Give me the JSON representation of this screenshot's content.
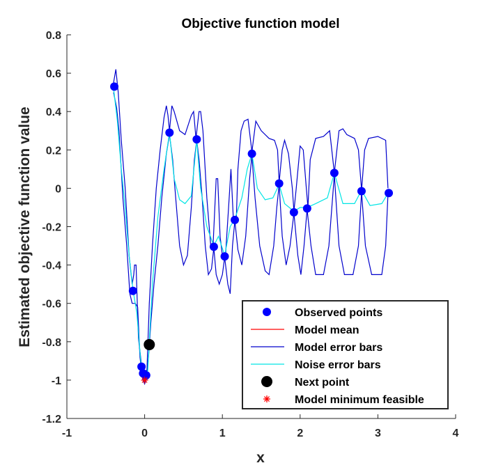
{
  "chart_data": {
    "type": "line",
    "title": "Objective function model",
    "xlabel": "x",
    "ylabel": "Estimated objective function value",
    "xlim": [
      -1,
      4
    ],
    "ylim": [
      -1.2,
      0.8
    ],
    "xticks": [
      "-1",
      "0",
      "1",
      "2",
      "3",
      "4"
    ],
    "yticks": [
      "-1.2",
      "-1",
      "-0.8",
      "-0.6",
      "-0.4",
      "-0.2",
      "0",
      "0.2",
      "0.4",
      "0.6",
      "0.8"
    ],
    "grid": false,
    "legend_position": "bottom-right",
    "series": [
      {
        "name": "Observed points",
        "kind": "markers",
        "color": "#0000ff",
        "points": [
          [
            -0.39,
            0.53
          ],
          [
            -0.15,
            -0.535
          ],
          [
            -0.04,
            -0.93
          ],
          [
            -0.02,
            -0.965
          ],
          [
            0.02,
            -0.975
          ],
          [
            0.32,
            0.29
          ],
          [
            0.67,
            0.255
          ],
          [
            0.89,
            -0.305
          ],
          [
            1.03,
            -0.355
          ],
          [
            1.16,
            -0.165
          ],
          [
            1.38,
            0.18
          ],
          [
            1.73,
            0.025
          ],
          [
            1.92,
            -0.125
          ],
          [
            2.09,
            -0.105
          ],
          [
            2.44,
            0.08
          ],
          [
            2.79,
            -0.015
          ],
          [
            3.14,
            -0.025
          ]
        ]
      },
      {
        "name": "Model mean",
        "kind": "line",
        "color": "#ff0000",
        "points": [
          [
            -0.02,
            -0.97
          ],
          [
            0.0,
            -1.0
          ],
          [
            0.02,
            -0.975
          ]
        ]
      },
      {
        "name": "Model error bars",
        "kind": "band",
        "color": "#0000cc",
        "upper": [
          [
            -0.4,
            0.55
          ],
          [
            -0.37,
            0.62
          ],
          [
            -0.34,
            0.5
          ],
          [
            -0.3,
            0.25
          ],
          [
            -0.25,
            0.0
          ],
          [
            -0.2,
            -0.35
          ],
          [
            -0.16,
            -0.5
          ],
          [
            -0.14,
            -0.45
          ],
          [
            -0.13,
            -0.4
          ],
          [
            -0.11,
            -0.4
          ],
          [
            -0.08,
            -0.78
          ],
          [
            -0.04,
            -0.92
          ],
          [
            0.0,
            -0.95
          ],
          [
            0.03,
            -0.95
          ],
          [
            0.06,
            -0.6
          ],
          [
            0.1,
            -0.3
          ],
          [
            0.15,
            0.0
          ],
          [
            0.2,
            0.2
          ],
          [
            0.25,
            0.37
          ],
          [
            0.28,
            0.43
          ],
          [
            0.3,
            0.38
          ],
          [
            0.32,
            0.3
          ],
          [
            0.35,
            0.43
          ],
          [
            0.38,
            0.4
          ],
          [
            0.45,
            0.3
          ],
          [
            0.52,
            0.28
          ],
          [
            0.6,
            0.38
          ],
          [
            0.63,
            0.4
          ],
          [
            0.66,
            0.26
          ],
          [
            0.7,
            0.4
          ],
          [
            0.72,
            0.4
          ],
          [
            0.75,
            0.3
          ],
          [
            0.8,
            -0.05
          ],
          [
            0.85,
            -0.3
          ],
          [
            0.88,
            -0.3
          ],
          [
            0.92,
            0.05
          ],
          [
            0.94,
            0.05
          ],
          [
            0.97,
            -0.25
          ],
          [
            1.0,
            -0.35
          ],
          [
            1.04,
            -0.35
          ],
          [
            1.08,
            -0.1
          ],
          [
            1.11,
            0.1
          ],
          [
            1.14,
            -0.15
          ],
          [
            1.18,
            -0.15
          ],
          [
            1.2,
            0.1
          ],
          [
            1.24,
            0.3
          ],
          [
            1.28,
            0.35
          ],
          [
            1.33,
            0.36
          ],
          [
            1.38,
            0.19
          ],
          [
            1.43,
            0.35
          ],
          [
            1.5,
            0.3
          ],
          [
            1.6,
            0.26
          ],
          [
            1.67,
            0.25
          ],
          [
            1.71,
            0.2
          ],
          [
            1.73,
            0.03
          ],
          [
            1.77,
            0.2
          ],
          [
            1.8,
            0.25
          ],
          [
            1.85,
            0.18
          ],
          [
            1.9,
            0.0
          ],
          [
            1.92,
            -0.12
          ],
          [
            1.95,
            0.0
          ],
          [
            2.0,
            0.22
          ],
          [
            2.04,
            0.2
          ],
          [
            2.08,
            0.0
          ],
          [
            2.1,
            -0.1
          ],
          [
            2.13,
            0.15
          ],
          [
            2.2,
            0.26
          ],
          [
            2.3,
            0.27
          ],
          [
            2.38,
            0.3
          ],
          [
            2.44,
            0.08
          ],
          [
            2.5,
            0.3
          ],
          [
            2.55,
            0.31
          ],
          [
            2.6,
            0.28
          ],
          [
            2.7,
            0.26
          ],
          [
            2.75,
            0.2
          ],
          [
            2.79,
            -0.01
          ],
          [
            2.83,
            0.2
          ],
          [
            2.88,
            0.26
          ],
          [
            3.0,
            0.27
          ],
          [
            3.1,
            0.25
          ],
          [
            3.13,
            0.0
          ]
        ],
        "lower": [
          [
            -0.4,
            0.5
          ],
          [
            -0.36,
            0.42
          ],
          [
            -0.33,
            0.3
          ],
          [
            -0.28,
            -0.05
          ],
          [
            -0.23,
            -0.3
          ],
          [
            -0.19,
            -0.55
          ],
          [
            -0.16,
            -0.6
          ],
          [
            -0.12,
            -0.6
          ],
          [
            -0.09,
            -0.62
          ],
          [
            -0.06,
            -0.88
          ],
          [
            -0.03,
            -0.99
          ],
          [
            0.0,
            -1.02
          ],
          [
            0.02,
            -1.0
          ],
          [
            0.05,
            -0.88
          ],
          [
            0.08,
            -0.7
          ],
          [
            0.12,
            -0.5
          ],
          [
            0.17,
            -0.3
          ],
          [
            0.22,
            -0.05
          ],
          [
            0.28,
            0.18
          ],
          [
            0.32,
            0.28
          ],
          [
            0.36,
            0.15
          ],
          [
            0.4,
            -0.05
          ],
          [
            0.45,
            -0.3
          ],
          [
            0.5,
            -0.4
          ],
          [
            0.55,
            -0.35
          ],
          [
            0.6,
            -0.1
          ],
          [
            0.64,
            0.15
          ],
          [
            0.67,
            0.25
          ],
          [
            0.7,
            0.15
          ],
          [
            0.74,
            -0.05
          ],
          [
            0.78,
            -0.3
          ],
          [
            0.82,
            -0.45
          ],
          [
            0.86,
            -0.42
          ],
          [
            0.89,
            -0.31
          ],
          [
            0.92,
            -0.45
          ],
          [
            0.96,
            -0.5
          ],
          [
            1.0,
            -0.45
          ],
          [
            1.03,
            -0.36
          ],
          [
            1.07,
            -0.5
          ],
          [
            1.1,
            -0.55
          ],
          [
            1.13,
            -0.3
          ],
          [
            1.16,
            -0.17
          ],
          [
            1.2,
            -0.32
          ],
          [
            1.25,
            -0.4
          ],
          [
            1.3,
            -0.25
          ],
          [
            1.35,
            0.05
          ],
          [
            1.38,
            0.17
          ],
          [
            1.42,
            -0.05
          ],
          [
            1.48,
            -0.3
          ],
          [
            1.55,
            -0.43
          ],
          [
            1.6,
            -0.45
          ],
          [
            1.66,
            -0.3
          ],
          [
            1.7,
            -0.1
          ],
          [
            1.73,
            0.02
          ],
          [
            1.77,
            -0.25
          ],
          [
            1.82,
            -0.4
          ],
          [
            1.87,
            -0.3
          ],
          [
            1.92,
            -0.13
          ],
          [
            1.97,
            -0.35
          ],
          [
            2.01,
            -0.45
          ],
          [
            2.05,
            -0.3
          ],
          [
            2.09,
            -0.11
          ],
          [
            2.14,
            -0.3
          ],
          [
            2.2,
            -0.45
          ],
          [
            2.3,
            -0.45
          ],
          [
            2.37,
            -0.3
          ],
          [
            2.44,
            0.07
          ],
          [
            2.5,
            -0.3
          ],
          [
            2.57,
            -0.45
          ],
          [
            2.68,
            -0.45
          ],
          [
            2.75,
            -0.3
          ],
          [
            2.79,
            -0.02
          ],
          [
            2.84,
            -0.3
          ],
          [
            2.92,
            -0.45
          ],
          [
            3.05,
            -0.45
          ],
          [
            3.1,
            -0.3
          ],
          [
            3.13,
            -0.03
          ]
        ]
      },
      {
        "name": "Noise error bars",
        "kind": "line",
        "color": "#00e5e5",
        "points": [
          [
            -0.4,
            0.52
          ],
          [
            -0.35,
            0.35
          ],
          [
            -0.3,
            0.1
          ],
          [
            -0.25,
            -0.1
          ],
          [
            -0.2,
            -0.35
          ],
          [
            -0.15,
            -0.53
          ],
          [
            -0.1,
            -0.65
          ],
          [
            -0.05,
            -0.9
          ],
          [
            0.0,
            -1.0
          ],
          [
            0.04,
            -0.95
          ],
          [
            0.1,
            -0.5
          ],
          [
            0.17,
            -0.15
          ],
          [
            0.25,
            0.1
          ],
          [
            0.32,
            0.29
          ],
          [
            0.38,
            0.05
          ],
          [
            0.45,
            -0.06
          ],
          [
            0.52,
            -0.08
          ],
          [
            0.6,
            -0.04
          ],
          [
            0.67,
            0.25
          ],
          [
            0.72,
            0.0
          ],
          [
            0.8,
            -0.2
          ],
          [
            0.89,
            -0.3
          ],
          [
            0.95,
            -0.25
          ],
          [
            1.03,
            -0.35
          ],
          [
            1.1,
            -0.2
          ],
          [
            1.16,
            -0.16
          ],
          [
            1.25,
            -0.05
          ],
          [
            1.32,
            0.1
          ],
          [
            1.38,
            0.18
          ],
          [
            1.45,
            0.0
          ],
          [
            1.55,
            -0.06
          ],
          [
            1.65,
            -0.05
          ],
          [
            1.73,
            0.02
          ],
          [
            1.8,
            -0.08
          ],
          [
            1.92,
            -0.12
          ],
          [
            2.0,
            -0.1
          ],
          [
            2.09,
            -0.1
          ],
          [
            2.2,
            -0.08
          ],
          [
            2.35,
            -0.05
          ],
          [
            2.44,
            0.08
          ],
          [
            2.55,
            -0.08
          ],
          [
            2.7,
            -0.08
          ],
          [
            2.79,
            -0.01
          ],
          [
            2.9,
            -0.09
          ],
          [
            3.05,
            -0.08
          ],
          [
            3.14,
            -0.02
          ]
        ]
      },
      {
        "name": "Next point",
        "kind": "marker",
        "color": "#000000",
        "points": [
          [
            0.06,
            -0.815
          ]
        ]
      },
      {
        "name": "Model minimum feasible",
        "kind": "star",
        "color": "#ff0000",
        "points": [
          [
            0.0,
            -1.0
          ]
        ]
      }
    ]
  }
}
